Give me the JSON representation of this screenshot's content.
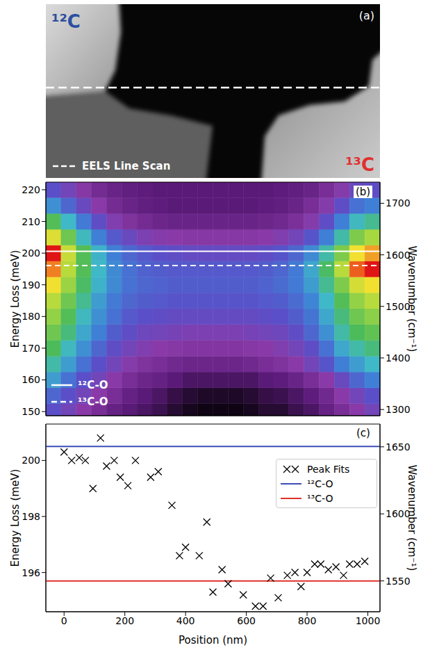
{
  "image": {
    "label": "(a)",
    "regions": [
      "¹²C",
      "¹³C"
    ],
    "line_scan": "EELS Line Scan"
  },
  "chart_data": [
    {
      "type": "heatmap",
      "label": "(b)",
      "y_label": "Energy Loss (meV)",
      "y2_label": "Wavenumber (cm⁻¹)",
      "xlim": [
        -60,
        1040
      ],
      "ylim": [
        148.7,
        222.4
      ],
      "yticks": [
        150,
        160,
        170,
        180,
        190,
        200,
        210,
        220
      ],
      "y2lim": [
        1288,
        1741
      ],
      "y2ticks": [
        1300,
        1400,
        1500,
        1600,
        1700
      ],
      "tick_labels": "y",
      "legend": "lower left",
      "heatmap": {
        "x": [
          -35,
          15,
          65,
          115,
          165,
          215,
          265,
          315,
          365,
          415,
          465,
          515,
          565,
          615,
          665,
          715,
          765,
          815,
          865,
          915,
          965,
          1015
        ],
        "y": [
          150,
          155,
          160,
          165,
          170,
          175,
          180,
          185,
          190,
          195,
          200,
          205,
          210,
          215,
          220
        ],
        "z": [
          [
            0.35,
            0.3,
            0.25,
            0.2,
            0.15,
            0.12,
            0.1,
            0.08,
            0.05,
            0.03,
            0.02,
            0.02,
            0.02,
            0.03,
            0.05,
            0.05,
            0.08,
            0.1,
            0.15,
            0.2,
            0.25,
            0.3
          ],
          [
            0.4,
            0.35,
            0.3,
            0.25,
            0.2,
            0.15,
            0.12,
            0.1,
            0.07,
            0.05,
            0.04,
            0.04,
            0.04,
            0.05,
            0.07,
            0.08,
            0.1,
            0.13,
            0.18,
            0.25,
            0.3,
            0.35
          ],
          [
            0.5,
            0.42,
            0.35,
            0.3,
            0.25,
            0.2,
            0.17,
            0.15,
            0.12,
            0.1,
            0.1,
            0.1,
            0.1,
            0.1,
            0.12,
            0.13,
            0.16,
            0.2,
            0.25,
            0.32,
            0.4,
            0.45
          ],
          [
            0.58,
            0.5,
            0.42,
            0.35,
            0.3,
            0.26,
            0.22,
            0.2,
            0.18,
            0.17,
            0.17,
            0.17,
            0.17,
            0.18,
            0.2,
            0.22,
            0.25,
            0.3,
            0.36,
            0.45,
            0.5,
            0.55
          ],
          [
            0.65,
            0.56,
            0.48,
            0.4,
            0.34,
            0.3,
            0.27,
            0.25,
            0.24,
            0.23,
            0.23,
            0.23,
            0.23,
            0.24,
            0.25,
            0.27,
            0.3,
            0.34,
            0.42,
            0.52,
            0.58,
            0.62
          ],
          [
            0.7,
            0.62,
            0.52,
            0.45,
            0.38,
            0.34,
            0.31,
            0.3,
            0.29,
            0.28,
            0.28,
            0.28,
            0.28,
            0.29,
            0.3,
            0.31,
            0.34,
            0.4,
            0.48,
            0.58,
            0.65,
            0.68
          ],
          [
            0.75,
            0.66,
            0.56,
            0.48,
            0.42,
            0.37,
            0.35,
            0.34,
            0.33,
            0.33,
            0.33,
            0.33,
            0.33,
            0.33,
            0.34,
            0.35,
            0.38,
            0.43,
            0.52,
            0.62,
            0.7,
            0.74
          ],
          [
            0.8,
            0.7,
            0.6,
            0.5,
            0.44,
            0.4,
            0.38,
            0.37,
            0.36,
            0.36,
            0.36,
            0.36,
            0.36,
            0.36,
            0.37,
            0.38,
            0.41,
            0.46,
            0.55,
            0.66,
            0.75,
            0.8
          ],
          [
            0.88,
            0.76,
            0.64,
            0.54,
            0.47,
            0.42,
            0.4,
            0.39,
            0.38,
            0.38,
            0.38,
            0.38,
            0.38,
            0.38,
            0.39,
            0.41,
            0.44,
            0.5,
            0.6,
            0.72,
            0.84,
            0.88
          ],
          [
            0.94,
            0.8,
            0.66,
            0.55,
            0.47,
            0.42,
            0.39,
            0.38,
            0.37,
            0.37,
            0.37,
            0.37,
            0.37,
            0.37,
            0.38,
            0.4,
            0.44,
            0.52,
            0.64,
            0.8,
            0.96,
            1.0
          ],
          [
            1.0,
            0.82,
            0.66,
            0.54,
            0.45,
            0.4,
            0.37,
            0.35,
            0.34,
            0.33,
            0.33,
            0.33,
            0.33,
            0.33,
            0.34,
            0.36,
            0.4,
            0.47,
            0.58,
            0.72,
            0.88,
            0.92
          ],
          [
            0.85,
            0.7,
            0.56,
            0.45,
            0.37,
            0.32,
            0.28,
            0.26,
            0.25,
            0.24,
            0.24,
            0.24,
            0.24,
            0.24,
            0.25,
            0.27,
            0.3,
            0.36,
            0.45,
            0.58,
            0.72,
            0.78
          ],
          [
            0.66,
            0.55,
            0.44,
            0.34,
            0.27,
            0.22,
            0.19,
            0.17,
            0.16,
            0.16,
            0.16,
            0.16,
            0.16,
            0.16,
            0.17,
            0.18,
            0.21,
            0.26,
            0.34,
            0.45,
            0.56,
            0.6
          ],
          [
            0.48,
            0.4,
            0.32,
            0.25,
            0.19,
            0.16,
            0.14,
            0.13,
            0.12,
            0.12,
            0.12,
            0.12,
            0.12,
            0.12,
            0.13,
            0.14,
            0.16,
            0.2,
            0.26,
            0.34,
            0.42,
            0.45
          ],
          [
            0.35,
            0.3,
            0.24,
            0.19,
            0.16,
            0.14,
            0.13,
            0.12,
            0.12,
            0.12,
            0.12,
            0.12,
            0.12,
            0.12,
            0.12,
            0.13,
            0.14,
            0.16,
            0.2,
            0.26,
            0.32,
            0.34
          ]
        ]
      },
      "series": [
        {
          "name": "¹²C-O",
          "type": "hline",
          "values": [
            200.6
          ],
          "color": "#ffffff",
          "line_style": "solid"
        },
        {
          "name": "¹³C-O",
          "type": "hline",
          "values": [
            196.1
          ],
          "color": "#ffffff",
          "line_style": "dashed"
        }
      ]
    },
    {
      "type": "scatter",
      "label": "(c)",
      "x_label": "Position (nm)",
      "y_label": "Energy Loss (meV)",
      "y2_label": "Wavenumber (cm⁻¹)",
      "xlim": [
        -60,
        1040
      ],
      "xticks": [
        0,
        200,
        400,
        600,
        800,
        1000
      ],
      "ylim": [
        194.6,
        201.3
      ],
      "yticks": [
        196,
        198,
        200
      ],
      "y2lim": [
        1527,
        1667
      ],
      "y2ticks": [
        1550,
        1600,
        1650
      ],
      "legend": "upper right",
      "series": [
        {
          "name": "Peak Fits",
          "type": "scatter",
          "marker": "x",
          "color": "#000000",
          "x": [
            0,
            25,
            50,
            70,
            95,
            120,
            140,
            165,
            185,
            210,
            235,
            285,
            310,
            355,
            380,
            400,
            445,
            470,
            490,
            520,
            540,
            590,
            630,
            655,
            680,
            705,
            735,
            760,
            780,
            800,
            825,
            845,
            870,
            895,
            920,
            940,
            965,
            990
          ],
          "values": [
            200.3,
            200.0,
            200.1,
            200.0,
            199.0,
            200.8,
            199.8,
            200.0,
            199.4,
            199.1,
            200.0,
            199.4,
            199.6,
            198.4,
            196.6,
            196.9,
            196.6,
            197.8,
            195.3,
            196.1,
            195.6,
            195.2,
            194.8,
            194.8,
            195.8,
            195.1,
            195.9,
            196.0,
            195.5,
            196.0,
            196.3,
            196.3,
            196.1,
            196.2,
            195.9,
            196.3,
            196.3,
            196.4
          ]
        },
        {
          "name": "¹²C-O",
          "type": "hline",
          "values": [
            200.5
          ],
          "color": "#3d4db7"
        },
        {
          "name": "¹³C-O",
          "type": "hline",
          "values": [
            195.7
          ],
          "color": "#e0302a"
        }
      ]
    }
  ]
}
